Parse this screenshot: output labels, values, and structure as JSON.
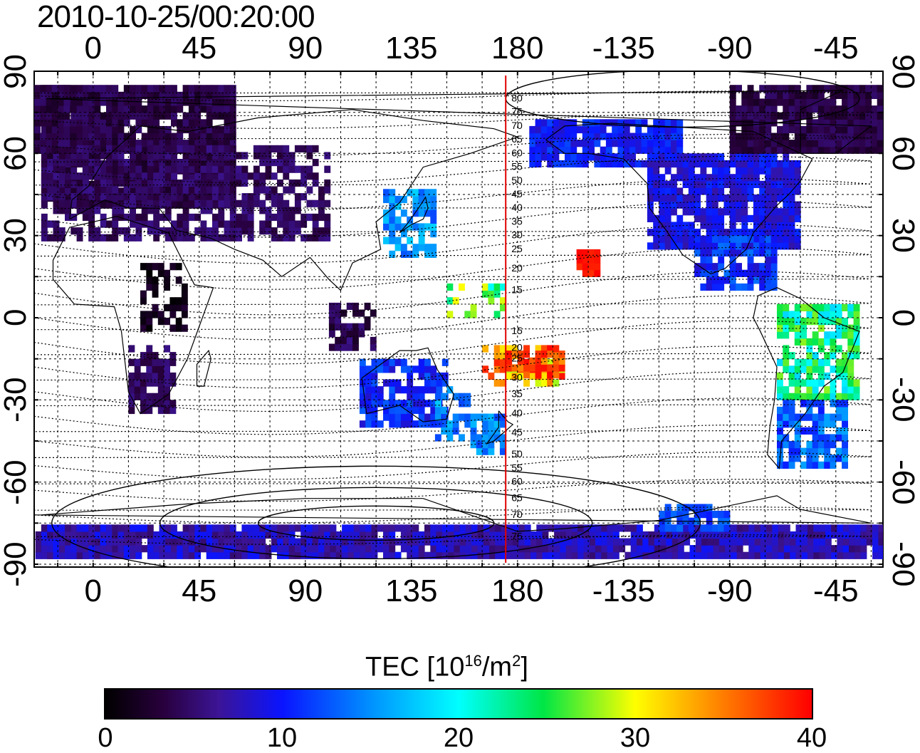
{
  "title": "2010-10-25/00:20:00",
  "map": {
    "x_ticks": [
      "0",
      "45",
      "90",
      "135",
      "180",
      "-135",
      "-90",
      "-45"
    ],
    "y_ticks": [
      "90",
      "60",
      "30",
      "0",
      "-30",
      "-60",
      "-90"
    ],
    "meridian_marker_lon": 175,
    "meridian_color": "#e00000",
    "contour_labels_north": [
      "80",
      "75",
      "70",
      "65",
      "60",
      "55",
      "50",
      "45",
      "40",
      "35",
      "30",
      "25",
      "20",
      "15"
    ],
    "contour_labels_south": [
      "15",
      "20",
      "25",
      "30",
      "35",
      "40",
      "45",
      "50",
      "55",
      "60",
      "65",
      "70",
      "75"
    ]
  },
  "colorbar": {
    "label": "TEC  [10",
    "label_exp": "16",
    "label_unit": "/m",
    "label_unit_exp": "2",
    "label_close": "]",
    "min": 0,
    "max": 40,
    "ticks": [
      "0",
      "10",
      "20",
      "30",
      "40"
    ],
    "colormap": "jet-dark"
  }
}
